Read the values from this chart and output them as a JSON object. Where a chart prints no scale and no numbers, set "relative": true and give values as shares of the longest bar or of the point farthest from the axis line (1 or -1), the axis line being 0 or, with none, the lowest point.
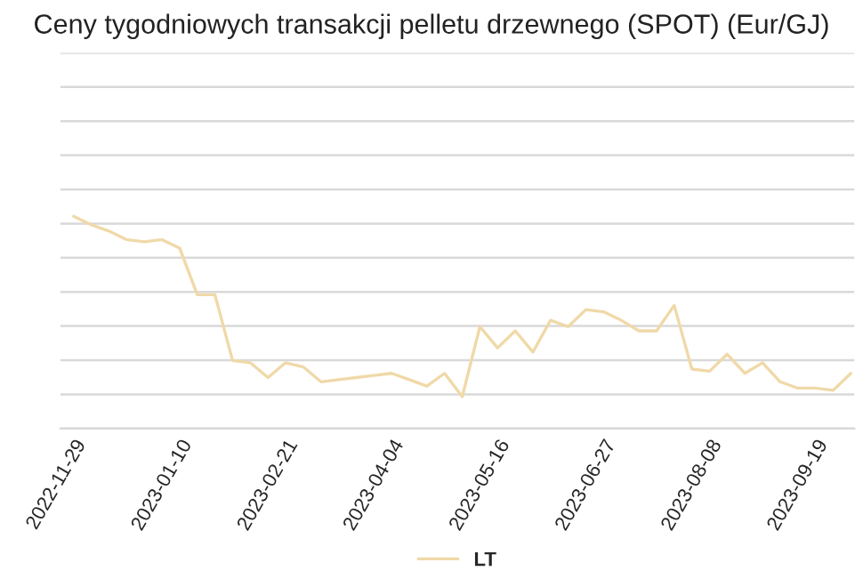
{
  "chart_data": {
    "type": "line",
    "title": "Ceny tygodniowych transakcji pelletu drzewnego (SPOT) (Eur/GJ)",
    "relative": true,
    "grid": "y",
    "legend": "bottom",
    "categories": [
      "2022-11-29",
      null,
      null,
      null,
      null,
      null,
      "2023-01-10",
      null,
      null,
      null,
      null,
      null,
      "2023-02-21",
      null,
      null,
      null,
      null,
      null,
      "2023-04-04",
      null,
      null,
      null,
      null,
      null,
      "2023-05-16",
      null,
      null,
      null,
      null,
      null,
      "2023-06-27",
      null,
      null,
      null,
      null,
      null,
      "2023-08-08",
      null,
      null,
      null,
      null,
      null,
      "2023-09-19",
      null,
      null
    ],
    "series": [
      {
        "name": "LT",
        "color": "#f0d9a8",
        "values": [
          1.0,
          0.96,
          0.93,
          0.89,
          0.88,
          0.89,
          0.85,
          0.63,
          0.63,
          0.32,
          0.31,
          0.24,
          0.31,
          0.29,
          0.22,
          0.23,
          0.24,
          0.25,
          0.26,
          0.23,
          0.2,
          0.26,
          0.15,
          0.48,
          0.38,
          0.46,
          0.36,
          0.51,
          0.48,
          0.56,
          0.55,
          0.51,
          0.46,
          0.46,
          0.58,
          0.28,
          0.27,
          0.35,
          0.26,
          0.31,
          0.22,
          0.19,
          0.19,
          0.18,
          0.26
        ]
      }
    ]
  }
}
